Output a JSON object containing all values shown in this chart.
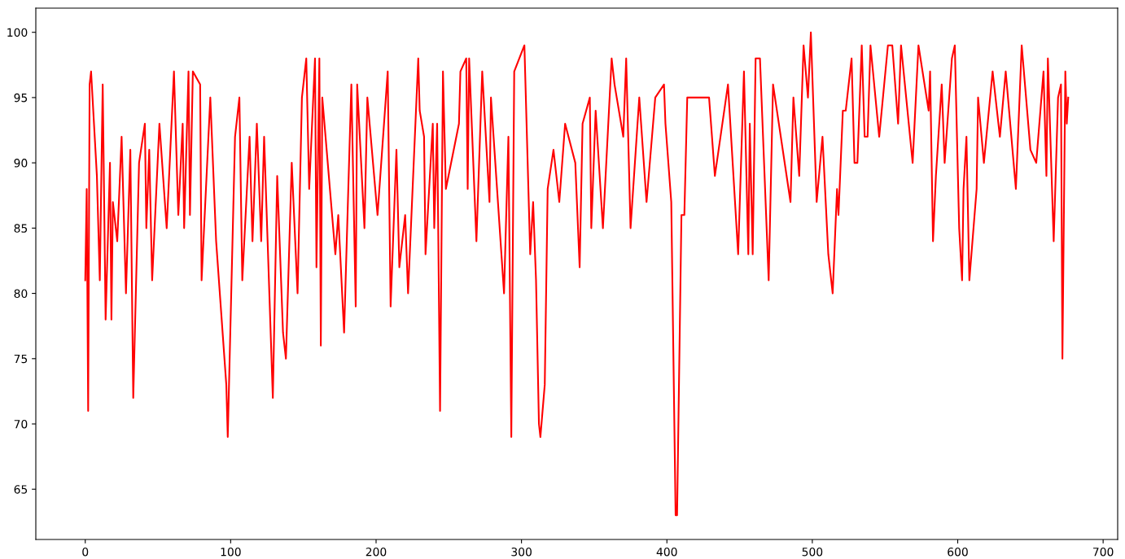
{
  "chart_data": {
    "type": "line",
    "x": [
      0,
      1,
      2,
      3,
      4,
      8,
      10,
      12,
      14,
      17,
      18,
      19,
      22,
      25,
      28,
      31,
      33,
      37,
      41,
      42,
      44,
      46,
      51,
      56,
      61,
      64,
      67,
      68,
      71,
      72,
      74,
      79,
      80,
      86,
      90,
      97,
      98,
      103,
      106,
      108,
      113,
      115,
      118,
      121,
      123,
      129,
      132,
      136,
      138,
      142,
      146,
      149,
      152,
      154,
      158,
      159,
      161,
      162,
      163,
      172,
      174,
      178,
      183,
      186,
      187,
      192,
      194,
      201,
      208,
      210,
      214,
      216,
      220,
      222,
      229,
      230,
      233,
      234,
      239,
      240,
      242,
      244,
      246,
      248,
      257,
      258,
      262,
      263,
      264,
      269,
      273,
      278,
      279,
      288,
      291,
      293,
      295,
      302,
      306,
      308,
      310,
      312,
      313,
      316,
      318,
      322,
      326,
      330,
      337,
      340,
      342,
      347,
      348,
      351,
      356,
      362,
      364,
      370,
      372,
      375,
      381,
      386,
      392,
      398,
      399,
      403,
      406,
      407,
      410,
      412,
      414,
      429,
      433,
      442,
      449,
      453,
      456,
      457,
      459,
      461,
      464,
      470,
      473,
      485,
      487,
      491,
      494,
      497,
      499,
      503,
      507,
      511,
      514,
      517,
      518,
      521,
      523,
      527,
      529,
      531,
      534,
      536,
      538,
      540,
      546,
      552,
      555,
      559,
      561,
      569,
      573,
      580,
      581,
      583,
      585,
      589,
      591,
      596,
      598,
      601,
      603,
      604,
      606,
      608,
      613,
      614,
      618,
      624,
      629,
      633,
      640,
      644,
      650,
      654,
      659,
      661,
      662,
      666,
      669,
      671,
      672,
      674,
      675,
      676
    ],
    "series": [
      {
        "color": "#ff0000",
        "values": [
          81,
          88,
          71,
          96,
          97,
          89,
          81,
          96,
          78,
          90,
          78,
          87,
          84,
          92,
          80,
          91,
          72,
          90,
          93,
          85,
          91,
          81,
          93,
          85,
          97,
          86,
          93,
          85,
          97,
          86,
          97,
          96,
          81,
          95,
          84,
          73,
          69,
          92,
          95,
          81,
          92,
          84,
          93,
          84,
          92,
          72,
          89,
          77,
          75,
          90,
          80,
          95,
          98,
          88,
          98,
          82,
          98,
          76,
          95,
          83,
          86,
          77,
          96,
          79,
          96,
          85,
          95,
          86,
          97,
          79,
          91,
          82,
          86,
          80,
          98,
          94,
          92,
          83,
          93,
          85,
          93,
          71,
          97,
          88,
          93,
          97,
          98,
          88,
          98,
          84,
          97,
          87,
          95,
          80,
          92,
          69,
          97,
          99,
          83,
          87,
          81,
          70,
          69,
          73,
          88,
          91,
          87,
          93,
          90,
          82,
          93,
          95,
          85,
          94,
          85,
          98,
          96,
          92,
          98,
          85,
          95,
          87,
          95,
          96,
          93,
          87,
          63,
          63,
          86,
          86,
          95,
          95,
          89,
          96,
          83,
          97,
          83,
          93,
          83,
          98,
          98,
          81,
          96,
          87,
          95,
          89,
          99,
          95,
          100,
          87,
          92,
          83,
          80,
          88,
          86,
          94,
          94,
          98,
          90,
          90,
          99,
          92,
          92,
          99,
          92,
          99,
          99,
          93,
          99,
          90,
          99,
          94,
          97,
          84,
          89,
          96,
          90,
          98,
          99,
          85,
          81,
          88,
          92,
          81,
          88,
          95,
          90,
          97,
          92,
          97,
          88,
          99,
          91,
          90,
          97,
          89,
          98,
          84,
          95,
          96,
          75,
          97,
          93,
          95
        ]
      }
    ],
    "xlim": [
      -34,
      710
    ],
    "ylim": [
      61.15,
      101.85
    ],
    "xticks": [
      0,
      100,
      200,
      300,
      400,
      500,
      600,
      700
    ],
    "yticks": [
      65,
      70,
      75,
      80,
      85,
      90,
      95,
      100
    ],
    "grid": false,
    "marker": "none",
    "line_style": "solid"
  }
}
